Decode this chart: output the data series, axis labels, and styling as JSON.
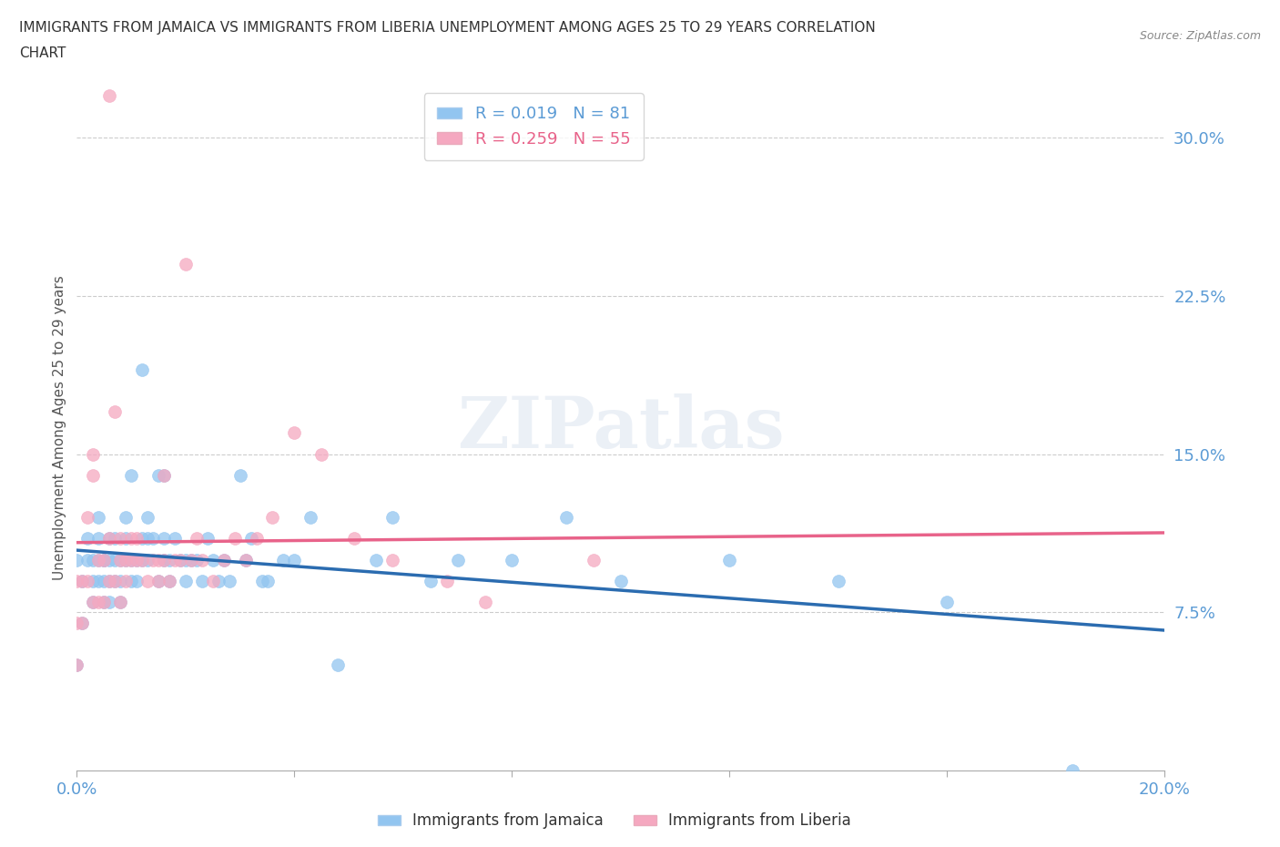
{
  "title_line1": "IMMIGRANTS FROM JAMAICA VS IMMIGRANTS FROM LIBERIA UNEMPLOYMENT AMONG AGES 25 TO 29 YEARS CORRELATION",
  "title_line2": "CHART",
  "source": "Source: ZipAtlas.com",
  "ylabel": "Unemployment Among Ages 25 to 29 years",
  "xlim": [
    0.0,
    0.2
  ],
  "ylim": [
    0.0,
    0.325
  ],
  "xticks": [
    0.0,
    0.04,
    0.08,
    0.12,
    0.16,
    0.2
  ],
  "xtick_labels": [
    "0.0%",
    "",
    "",
    "",
    "",
    "20.0%"
  ],
  "yticks": [
    0.0,
    0.075,
    0.15,
    0.225,
    0.3
  ],
  "ytick_labels": [
    "",
    "7.5%",
    "15.0%",
    "22.5%",
    "30.0%"
  ],
  "jamaica_color": "#92C5F0",
  "liberia_color": "#F5A8C0",
  "jamaica_line_color": "#2B6CB0",
  "liberia_line_color": "#E8638A",
  "R_jamaica": 0.019,
  "N_jamaica": 81,
  "R_liberia": 0.259,
  "N_liberia": 55,
  "watermark": "ZIPatlas",
  "background_color": "#FFFFFF",
  "grid_color": "#CCCCCC",
  "jamaica_x": [
    0.0,
    0.0,
    0.001,
    0.001,
    0.002,
    0.002,
    0.003,
    0.003,
    0.003,
    0.004,
    0.004,
    0.004,
    0.004,
    0.005,
    0.005,
    0.005,
    0.005,
    0.006,
    0.006,
    0.006,
    0.006,
    0.007,
    0.007,
    0.007,
    0.008,
    0.008,
    0.008,
    0.009,
    0.009,
    0.009,
    0.01,
    0.01,
    0.01,
    0.011,
    0.011,
    0.012,
    0.012,
    0.012,
    0.013,
    0.013,
    0.013,
    0.014,
    0.015,
    0.015,
    0.016,
    0.016,
    0.016,
    0.017,
    0.017,
    0.018,
    0.019,
    0.02,
    0.02,
    0.021,
    0.022,
    0.023,
    0.024,
    0.025,
    0.026,
    0.027,
    0.028,
    0.03,
    0.031,
    0.032,
    0.034,
    0.035,
    0.038,
    0.04,
    0.043,
    0.048,
    0.055,
    0.058,
    0.065,
    0.07,
    0.08,
    0.09,
    0.1,
    0.12,
    0.14,
    0.16,
    0.183
  ],
  "jamaica_y": [
    0.1,
    0.05,
    0.09,
    0.07,
    0.1,
    0.11,
    0.09,
    0.1,
    0.08,
    0.09,
    0.1,
    0.11,
    0.12,
    0.08,
    0.09,
    0.1,
    0.1,
    0.08,
    0.09,
    0.1,
    0.11,
    0.09,
    0.1,
    0.11,
    0.08,
    0.09,
    0.1,
    0.1,
    0.11,
    0.12,
    0.09,
    0.1,
    0.14,
    0.09,
    0.1,
    0.1,
    0.11,
    0.19,
    0.1,
    0.11,
    0.12,
    0.11,
    0.09,
    0.14,
    0.1,
    0.11,
    0.14,
    0.09,
    0.1,
    0.11,
    0.1,
    0.09,
    0.1,
    0.1,
    0.1,
    0.09,
    0.11,
    0.1,
    0.09,
    0.1,
    0.09,
    0.14,
    0.1,
    0.11,
    0.09,
    0.09,
    0.1,
    0.1,
    0.12,
    0.05,
    0.1,
    0.12,
    0.09,
    0.1,
    0.1,
    0.12,
    0.09,
    0.1,
    0.09,
    0.08,
    0.0
  ],
  "liberia_x": [
    0.0,
    0.0,
    0.0,
    0.001,
    0.001,
    0.002,
    0.002,
    0.003,
    0.003,
    0.003,
    0.004,
    0.004,
    0.005,
    0.005,
    0.006,
    0.006,
    0.006,
    0.007,
    0.007,
    0.008,
    0.008,
    0.008,
    0.009,
    0.009,
    0.01,
    0.01,
    0.011,
    0.011,
    0.012,
    0.013,
    0.014,
    0.015,
    0.015,
    0.016,
    0.016,
    0.017,
    0.018,
    0.019,
    0.02,
    0.021,
    0.022,
    0.023,
    0.025,
    0.027,
    0.029,
    0.031,
    0.033,
    0.036,
    0.04,
    0.045,
    0.051,
    0.058,
    0.068,
    0.075,
    0.095
  ],
  "liberia_y": [
    0.05,
    0.07,
    0.09,
    0.07,
    0.09,
    0.09,
    0.12,
    0.08,
    0.14,
    0.15,
    0.08,
    0.1,
    0.08,
    0.1,
    0.09,
    0.11,
    0.32,
    0.09,
    0.17,
    0.08,
    0.1,
    0.11,
    0.09,
    0.1,
    0.1,
    0.11,
    0.1,
    0.11,
    0.1,
    0.09,
    0.1,
    0.09,
    0.1,
    0.1,
    0.14,
    0.09,
    0.1,
    0.1,
    0.24,
    0.1,
    0.11,
    0.1,
    0.09,
    0.1,
    0.11,
    0.1,
    0.11,
    0.12,
    0.16,
    0.15,
    0.11,
    0.1,
    0.09,
    0.08,
    0.1
  ]
}
